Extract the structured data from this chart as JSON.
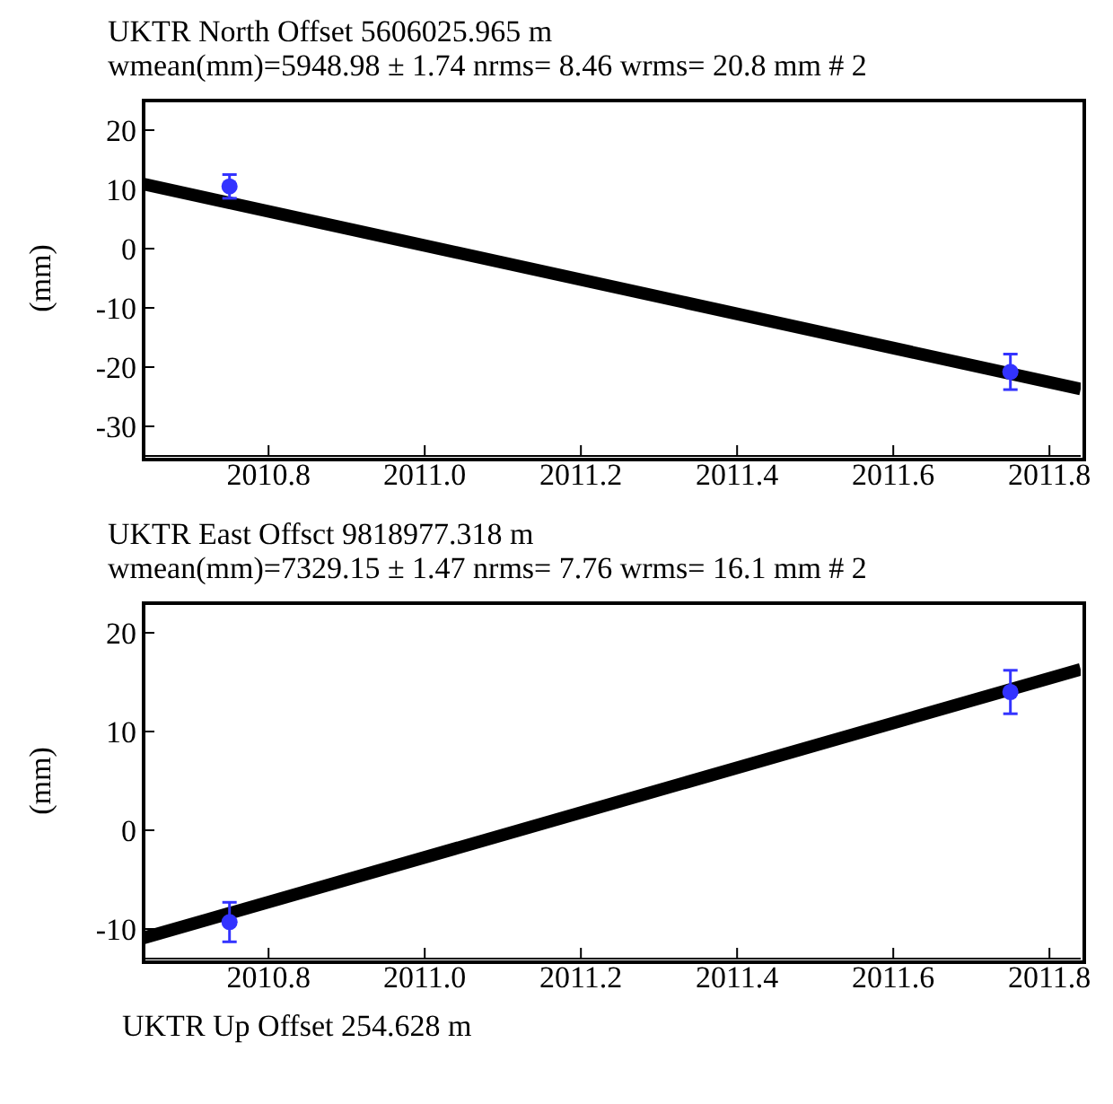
{
  "chart_data": [
    {
      "type": "scatter",
      "title": "UKTR North Offset 5606025.965 m",
      "subtitle": "wmean(mm)=5948.98 ± 1.74 nrms= 8.46 wrms= 20.8 mm # 2",
      "ylabel": "(mm)",
      "xlim": [
        2010.64,
        2011.84
      ],
      "xticks": [
        2010.8,
        {
          "value": 2011,
          "label": "2011.0"
        },
        2011.2,
        2011.4,
        2011.6,
        2011.8
      ],
      "ylim": [
        -35,
        25
      ],
      "yticks": [
        -30,
        -20,
        -10,
        0,
        10,
        20
      ],
      "grid": false,
      "series": [
        {
          "type": "line",
          "color": "#000000",
          "marker": "none",
          "x": [
            2010.64,
            2011.84
          ],
          "values": [
            10.9,
            -23.7
          ]
        },
        {
          "color": "#3333ff",
          "marker": "circle",
          "x": [
            2010.75,
            2011.75
          ],
          "values": [
            10.5,
            -20.8
          ],
          "errors": [
            2,
            3
          ]
        }
      ]
    },
    {
      "type": "scatter",
      "title": "UKTR East Offsct 9818977.318 m",
      "subtitle": "wmean(mm)=7329.15 ± 1.47 nrms= 7.76 wrms= 16.1 mm # 2",
      "ylabel": "(mm)",
      "xlim": [
        2010.64,
        2011.84
      ],
      "xticks": [
        2010.8,
        {
          "value": 2011,
          "label": "2011.0"
        },
        2011.2,
        2011.4,
        2011.6,
        2011.8
      ],
      "ylim": [
        -13,
        23
      ],
      "yticks": [
        -10,
        0,
        10,
        20
      ],
      "grid": false,
      "annotations": [
        "UKTR Up Offset 254.628 m"
      ],
      "series": [
        {
          "type": "line",
          "color": "#000000",
          "marker": "none",
          "x": [
            2010.64,
            2011.84
          ],
          "values": [
            -10.9,
            16.3
          ]
        },
        {
          "color": "#3333ff",
          "marker": "circle",
          "x": [
            2010.75,
            2011.75
          ],
          "values": [
            -9.3,
            14
          ],
          "errors": [
            2,
            2.2
          ]
        }
      ]
    }
  ]
}
